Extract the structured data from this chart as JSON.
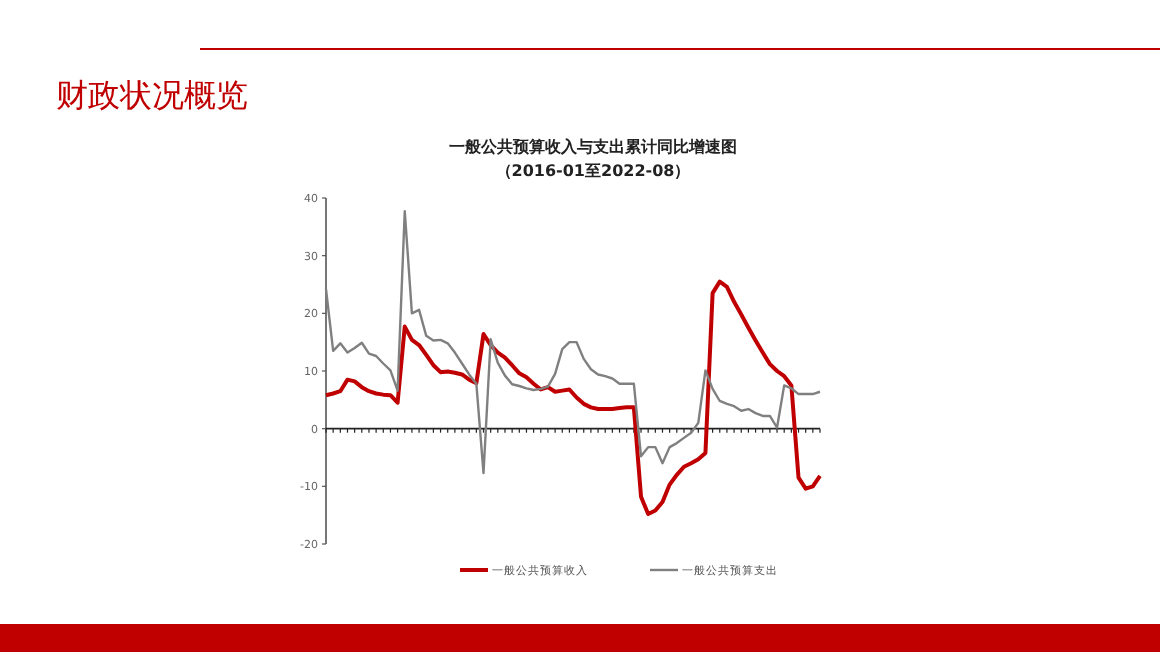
{
  "chart_data": {
    "type": "line",
    "title": "一般公共预算收入与支出累计同比增速图",
    "subtitle": "（2016-01至2022-08）",
    "annotations": [
      "财政状况概览"
    ],
    "categories": [
      null,
      null,
      null,
      null,
      null,
      null,
      null,
      null,
      null,
      null,
      null,
      null,
      null,
      null,
      null,
      null,
      null,
      null,
      null,
      null,
      null,
      null,
      null,
      null,
      null,
      null,
      null,
      null,
      null,
      null,
      null,
      null,
      null,
      null,
      null,
      null,
      null,
      null,
      null,
      null,
      null,
      null,
      null,
      null,
      null,
      null,
      null,
      null,
      null,
      null,
      null,
      null,
      null,
      null,
      null,
      null,
      null,
      null,
      null,
      null,
      null,
      null,
      null,
      null,
      null,
      null,
      null,
      null,
      null,
      null
    ],
    "series": [
      {
        "name": "一般公共预算收入",
        "color": "#c00000",
        "values": [
          5.8,
          6.1,
          6.5,
          8.5,
          8.2,
          7.2,
          6.5,
          6.1,
          5.9,
          5.8,
          4.5,
          17.7,
          15.4,
          14.5,
          12.8,
          11.0,
          9.8,
          9.9,
          9.7,
          9.4,
          8.5,
          7.9,
          16.4,
          14.5,
          13.2,
          12.3,
          11.0,
          9.6,
          8.9,
          7.8,
          6.8,
          7.2,
          6.4,
          6.6,
          6.8,
          5.4,
          4.3,
          3.7,
          3.4,
          3.4,
          3.4,
          3.6,
          3.7,
          3.7,
          -11.8,
          -14.8,
          -14.2,
          -12.7,
          -9.7,
          -8.0,
          -6.6,
          -6.0,
          -5.3,
          -4.2,
          23.5,
          25.5,
          24.6,
          22.0,
          19.8,
          17.5,
          15.3,
          13.2,
          11.2,
          10.0,
          9.1,
          7.5,
          -8.5,
          -10.4,
          -10.0,
          -8.2
        ]
      },
      {
        "name": "一般公共预算支出",
        "color": "#808080",
        "values": [
          24.2,
          13.5,
          14.8,
          13.2,
          14.0,
          14.9,
          13.0,
          12.6,
          11.3,
          10.1,
          6.6,
          37.7,
          20.0,
          20.6,
          16.1,
          15.3,
          15.4,
          14.8,
          13.2,
          11.3,
          9.4,
          7.8,
          -7.7,
          15.5,
          11.4,
          9.2,
          7.7,
          7.4,
          7.0,
          6.7,
          6.9,
          7.3,
          9.5,
          13.8,
          15.0,
          15.0,
          12.1,
          10.3,
          9.4,
          9.1,
          8.7,
          7.8,
          7.8,
          7.8,
          -4.8,
          -3.2,
          -3.2,
          -6.0,
          -3.2,
          -2.5,
          -1.6,
          -0.7,
          1.0,
          10.1,
          6.9,
          4.8,
          4.3,
          3.9,
          3.1,
          3.4,
          2.7,
          2.2,
          2.2,
          0.2,
          7.5,
          7.0,
          6.0,
          6.0,
          6.0,
          6.4
        ]
      }
    ],
    "ylim": [
      -20,
      40
    ],
    "yticks": [
      -20,
      -10,
      0,
      10,
      20,
      30,
      40
    ],
    "legend": "bottom",
    "marker": "none",
    "line_style": "solid"
  }
}
